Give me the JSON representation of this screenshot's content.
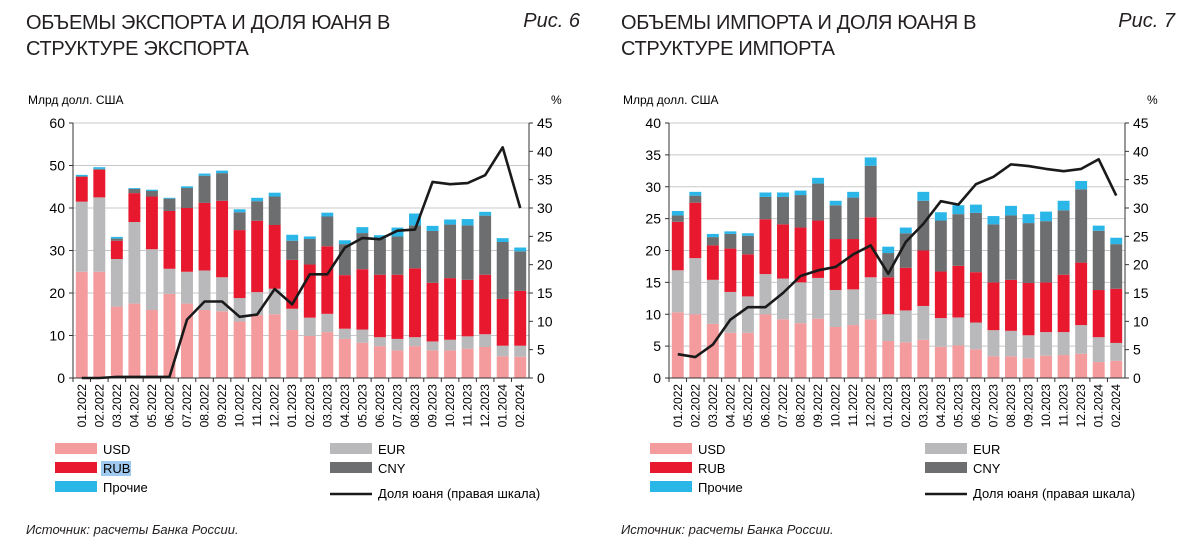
{
  "colors": {
    "USD": "#f49b9d",
    "EUR": "#b9b9bb",
    "RUB": "#e8182e",
    "CNY": "#6d6e70",
    "Other": "#2bb6e8",
    "line": "#1a1a1a"
  },
  "chart_data": [
    {
      "type": "bar",
      "stacked": true,
      "title": "ОБЪЕМЫ ЭКСПОРТА И ДОЛЯ ЮАНЯ В СТРУКТУРЕ ЭКСПОРТА",
      "figure_label": "Рис. 6",
      "ylabel": "Млрд долл. США",
      "y2label": "%",
      "ylim": [
        0,
        60
      ],
      "yticks": [
        0,
        10,
        20,
        30,
        40,
        50,
        60
      ],
      "y2lim": [
        0,
        45
      ],
      "y2ticks": [
        0,
        5,
        10,
        15,
        20,
        25,
        30,
        35,
        40,
        45
      ],
      "categories": [
        "01.2022",
        "02.2022",
        "03.2022",
        "04.2022",
        "05.2022",
        "06.2022",
        "07.2022",
        "08.2022",
        "09.2022",
        "10.2022",
        "11.2022",
        "12.2022",
        "01.2023",
        "02.2023",
        "03.2023",
        "04.2023",
        "05.2023",
        "06.2023",
        "07.2023",
        "08.2023",
        "09.2023",
        "10.2023",
        "11.2023",
        "12.2023",
        "01.2024",
        "02.2024"
      ],
      "series": [
        {
          "key": "USD",
          "name": "USD",
          "values": [
            25,
            25,
            16.8,
            17.5,
            16,
            19.8,
            17.5,
            16,
            15.7,
            13.3,
            14.8,
            15,
            11.3,
            9.9,
            10.8,
            9.2,
            8.3,
            7.5,
            6.5,
            7.5,
            6.5,
            6.5,
            6.9,
            7.3,
            5.1,
            5
          ]
        },
        {
          "key": "EUR",
          "name": "EUR",
          "values": [
            16.5,
            17.5,
            11.2,
            19.2,
            14.3,
            5.9,
            7.5,
            9.3,
            8,
            5.5,
            5.4,
            6,
            5,
            4.3,
            4.3,
            2.4,
            3.1,
            2.1,
            2.7,
            2.1,
            2.1,
            2.5,
            2.9,
            3,
            2.5,
            2.6
          ]
        },
        {
          "key": "RUB",
          "name": "RUB",
          "values": [
            5.8,
            6.5,
            4.3,
            6.8,
            12.4,
            13.6,
            15,
            15.9,
            18,
            16,
            16.8,
            15,
            11.5,
            12.5,
            15.9,
            12.6,
            14.2,
            14.7,
            15.1,
            16.2,
            13.8,
            14.5,
            13.3,
            14,
            11,
            12.9
          ]
        },
        {
          "key": "CNY",
          "name": "CNY",
          "values": [
            0.2,
            0.2,
            0.5,
            1,
            1.3,
            2.9,
            4.7,
            6.4,
            6.5,
            4.2,
            4.6,
            6.7,
            4.5,
            6,
            7,
            7.3,
            8.5,
            8.5,
            9,
            10.1,
            12.2,
            12.6,
            12.8,
            13.9,
            13.4,
            9.3
          ]
        },
        {
          "key": "Other",
          "name": "Прочие",
          "values": [
            0.3,
            0.4,
            0.4,
            0.2,
            0.3,
            0.2,
            0.4,
            0.5,
            0.6,
            0.7,
            0.8,
            0.9,
            1.4,
            0.6,
            0.9,
            0.9,
            1.4,
            0.8,
            2.1,
            2.8,
            1.2,
            1.2,
            1.5,
            0.9,
            0.9,
            0.9
          ]
        }
      ],
      "line": {
        "name": "Доля юаня (правая шкала)",
        "axis": "right",
        "values": [
          0,
          0,
          0.2,
          0.2,
          0.2,
          0.2,
          10.3,
          13.5,
          13.5,
          10.8,
          11.2,
          15.7,
          13,
          18.3,
          18.3,
          23,
          24.7,
          24.5,
          26,
          26.2,
          34.6,
          34.2,
          34.4,
          35.8,
          40.7,
          30
        ]
      },
      "legend": "bottom",
      "source": "Источник: расчеты Банка России."
    },
    {
      "type": "bar",
      "stacked": true,
      "title": "ОБЪЕМЫ ИМПОРТА И ДОЛЯ ЮАНЯ В СТРУКТУРЕ ИМПОРТА",
      "figure_label": "Рис. 7",
      "ylabel": "Млрд долл. США",
      "y2label": "%",
      "ylim": [
        0,
        40
      ],
      "yticks": [
        0,
        5,
        10,
        15,
        20,
        25,
        30,
        35,
        40
      ],
      "y2lim": [
        0,
        45
      ],
      "y2ticks": [
        0,
        5,
        10,
        15,
        20,
        25,
        30,
        35,
        40,
        45
      ],
      "categories": [
        "01.2022",
        "02.2022",
        "03.2022",
        "04.2022",
        "05.2022",
        "06.2022",
        "07.2022",
        "08.2022",
        "09.2022",
        "10.2022",
        "11.2022",
        "12.2022",
        "01.2023",
        "02.2023",
        "03.2023",
        "04.2023",
        "05.2023",
        "06.2023",
        "07.2023",
        "08.2023",
        "09.2023",
        "10.2023",
        "11.2023",
        "12.2023",
        "01.2024",
        "02.2024"
      ],
      "series": [
        {
          "key": "USD",
          "name": "USD",
          "values": [
            10.3,
            10,
            8.5,
            7.1,
            7.1,
            10,
            9.2,
            8.6,
            9.3,
            8,
            8.3,
            9.2,
            5.8,
            5.6,
            6,
            4.9,
            5.1,
            4.5,
            3.4,
            3.4,
            3.1,
            3.5,
            3.6,
            3.8,
            2.5,
            2.7
          ]
        },
        {
          "key": "EUR",
          "name": "EUR",
          "values": [
            6.6,
            8.8,
            6.9,
            6.4,
            5.7,
            6.3,
            6.4,
            6.4,
            6.4,
            5.8,
            5.6,
            6.6,
            4.2,
            5,
            5.3,
            4.5,
            4.4,
            4.2,
            4.1,
            4,
            3.6,
            3.7,
            3.6,
            4.5,
            3.9,
            2.8
          ]
        },
        {
          "key": "RUB",
          "name": "RUB",
          "values": [
            7.6,
            8.7,
            5.4,
            6.8,
            6.6,
            8.6,
            8.5,
            8.6,
            9,
            8,
            7.9,
            9.4,
            5.8,
            6.7,
            8.7,
            7.3,
            8.1,
            7.9,
            7.5,
            8,
            8.2,
            7.8,
            9,
            9.8,
            7.4,
            8.5
          ]
        },
        {
          "key": "CNY",
          "name": "CNY",
          "values": [
            1,
            1.1,
            1.3,
            2.3,
            2.9,
            3.5,
            4.3,
            5.1,
            5.8,
            5.3,
            6.5,
            8.1,
            3.8,
            5.4,
            7.8,
            8,
            8.1,
            9.3,
            9.1,
            10.1,
            9.4,
            9.6,
            10.1,
            11.5,
            9.3,
            7
          ]
        },
        {
          "key": "Other",
          "name": "Прочие",
          "values": [
            0.7,
            0.6,
            0.5,
            0.4,
            0.4,
            0.7,
            0.7,
            0.7,
            0.9,
            0.7,
            0.9,
            1.3,
            1,
            0.9,
            1.4,
            1.3,
            1.4,
            1.3,
            1.3,
            1.5,
            1.4,
            1.5,
            1.5,
            1.3,
            0.8,
            1
          ]
        }
      ],
      "line": {
        "name": "Доля юаня (правая шкала)",
        "axis": "right",
        "values": [
          4.2,
          3.7,
          5.9,
          10.3,
          12.5,
          12.5,
          15,
          18,
          19,
          19.6,
          21.8,
          23.4,
          18.4,
          24,
          27.2,
          31.2,
          30.6,
          34.2,
          35.5,
          37.7,
          37.4,
          36.9,
          36.5,
          36.9,
          38.6,
          32.2
        ]
      },
      "legend": "bottom",
      "source": "Источник: расчеты Банка России."
    }
  ]
}
